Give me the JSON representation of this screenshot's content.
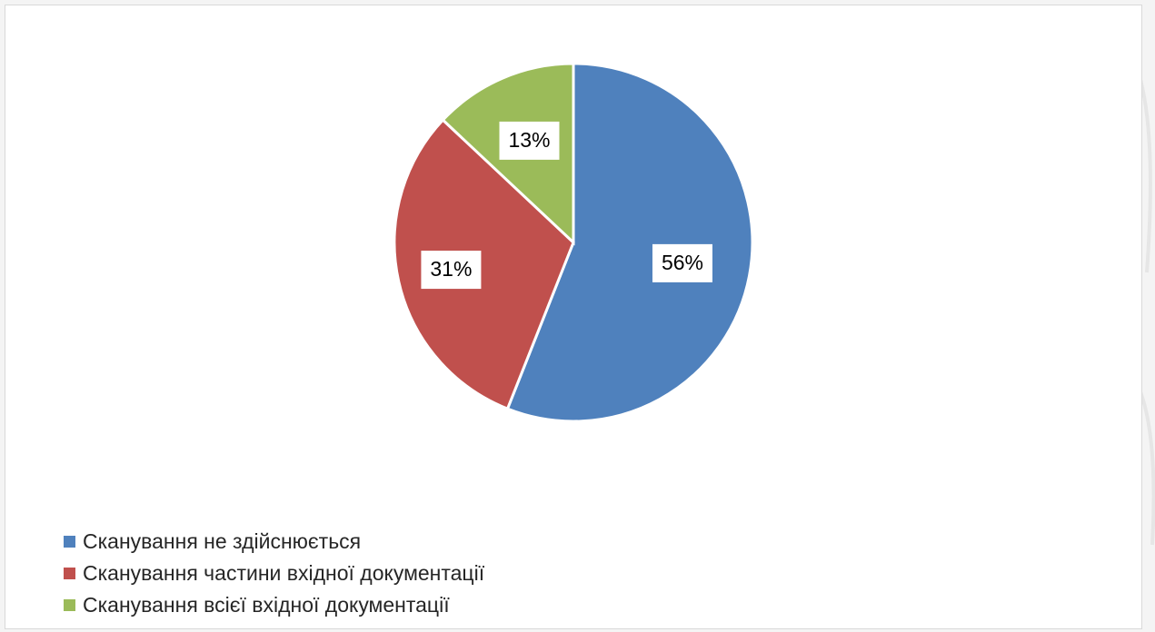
{
  "chart_data": {
    "type": "pie",
    "title": "",
    "slices": [
      {
        "label": "Сканування не здійснюється",
        "value": 56,
        "data_label": "56%",
        "color": "#4f81bd"
      },
      {
        "label": "Сканування частини вхідної документації",
        "value": 31,
        "data_label": "31%",
        "color": "#c0504d"
      },
      {
        "label": "Сканування всієї вхідної документації",
        "value": 13,
        "data_label": "13%",
        "color": "#9bbb59"
      }
    ],
    "start_angle_deg": 0,
    "direction": "clockwise",
    "legend_position": "bottom-left"
  }
}
